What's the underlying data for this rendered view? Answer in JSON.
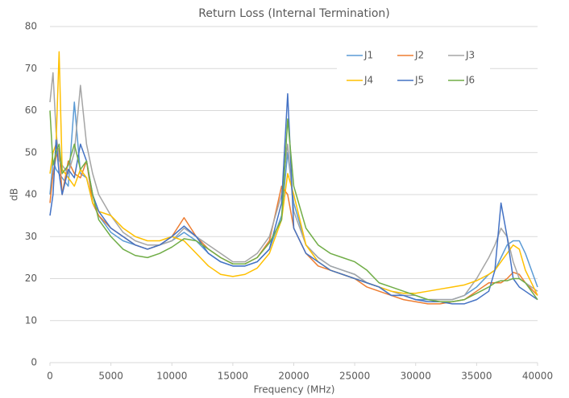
{
  "chart_data": {
    "type": "line",
    "title": "Return Loss (Internal Termination)",
    "x_label": "Frequency (MHz)",
    "y_label": "dB",
    "x": [
      0,
      250,
      500,
      750,
      1000,
      1500,
      2000,
      2500,
      3000,
      3500,
      4000,
      5000,
      6000,
      7000,
      8000,
      9000,
      10000,
      11000,
      12000,
      13000,
      14000,
      15000,
      16000,
      17000,
      18000,
      19000,
      19500,
      20000,
      21000,
      22000,
      23000,
      24000,
      25000,
      26000,
      27000,
      28000,
      29000,
      30000,
      31000,
      32000,
      33000,
      34000,
      35000,
      36000,
      36500,
      37000,
      37500,
      38000,
      38500,
      39000,
      40000
    ],
    "series": [
      {
        "name": "J1",
        "color": "#5b9bd5",
        "values": [
          40,
          48,
          46,
          45,
          44,
          42,
          62,
          45,
          44,
          38,
          35,
          31,
          29,
          28,
          27,
          28,
          29,
          31,
          29,
          26,
          24,
          23,
          23,
          24,
          27,
          35,
          50,
          38,
          28,
          25,
          23,
          22,
          21,
          19,
          18,
          16,
          16,
          15,
          15,
          15,
          15,
          16,
          18,
          21,
          22,
          25,
          28,
          29,
          29,
          26,
          18
        ]
      },
      {
        "name": "J2",
        "color": "#ed7d31",
        "values": [
          38,
          45,
          49,
          51,
          40,
          48,
          45,
          44,
          48,
          38,
          35,
          32,
          30,
          28,
          27,
          28,
          30,
          34.5,
          30,
          27,
          25,
          23.5,
          23.5,
          25,
          29,
          42,
          40,
          32,
          26,
          23,
          22,
          21,
          20,
          18,
          17,
          16,
          15,
          14.5,
          14,
          14,
          14.5,
          15,
          17,
          19,
          19,
          19,
          20,
          21.5,
          21,
          19,
          16
        ]
      },
      {
        "name": "J3",
        "color": "#a5a5a5",
        "values": [
          62,
          69,
          55,
          48,
          47,
          45,
          50,
          66,
          52,
          45,
          40,
          35,
          31,
          29,
          28,
          28,
          29,
          32,
          30,
          28,
          26,
          24,
          24,
          26,
          30,
          40,
          52,
          36,
          28,
          25,
          23,
          22,
          21,
          19,
          18,
          17,
          16,
          16,
          15,
          15,
          15,
          16,
          20,
          25,
          28,
          32,
          30,
          24,
          20,
          19,
          17
        ]
      },
      {
        "name": "J4",
        "color": "#ffc000",
        "values": [
          45,
          50,
          52,
          74,
          46,
          44,
          42,
          46,
          44,
          38,
          36,
          35,
          32,
          30,
          29,
          29,
          30,
          29,
          26,
          23,
          21,
          20.5,
          21,
          22.5,
          26,
          34,
          45,
          40,
          28,
          24,
          22,
          21,
          20,
          19,
          18,
          17,
          16.5,
          16.5,
          17,
          17.5,
          18,
          18.5,
          19.5,
          21,
          22,
          24,
          26,
          28,
          27,
          22,
          16
        ]
      },
      {
        "name": "J5",
        "color": "#4472c4",
        "values": [
          35,
          40,
          53,
          45,
          40,
          46,
          44,
          52,
          48,
          40,
          36,
          32,
          30,
          28,
          27,
          28,
          30,
          32.5,
          30,
          26,
          24,
          23,
          23,
          24,
          27,
          38,
          64,
          32,
          26,
          24,
          22,
          21,
          20,
          19,
          18,
          16,
          16,
          15,
          14.5,
          14.5,
          14,
          14,
          15,
          17,
          22,
          38,
          30,
          20,
          18,
          17,
          15
        ]
      },
      {
        "name": "J6",
        "color": "#70ad47",
        "values": [
          60,
          47,
          50,
          52,
          45,
          47,
          52,
          46,
          48,
          40,
          34,
          30,
          27,
          25.5,
          25,
          26,
          27.5,
          29.5,
          29,
          27,
          25,
          23.5,
          23.5,
          25,
          28.5,
          34,
          58,
          42,
          32,
          28,
          26,
          25,
          24,
          22,
          19,
          18,
          17,
          16,
          15,
          14.5,
          14.5,
          15,
          16.5,
          18,
          19,
          19.5,
          19.5,
          20,
          20,
          19,
          15
        ]
      }
    ],
    "xlim": [
      0,
      40000
    ],
    "xticks": [
      0,
      5000,
      10000,
      15000,
      20000,
      25000,
      30000,
      35000,
      40000
    ],
    "ylim": [
      0,
      80
    ],
    "yticks": [
      0,
      10,
      20,
      30,
      40,
      50,
      60,
      70,
      80
    ],
    "grid": true,
    "legend": "top-right"
  }
}
